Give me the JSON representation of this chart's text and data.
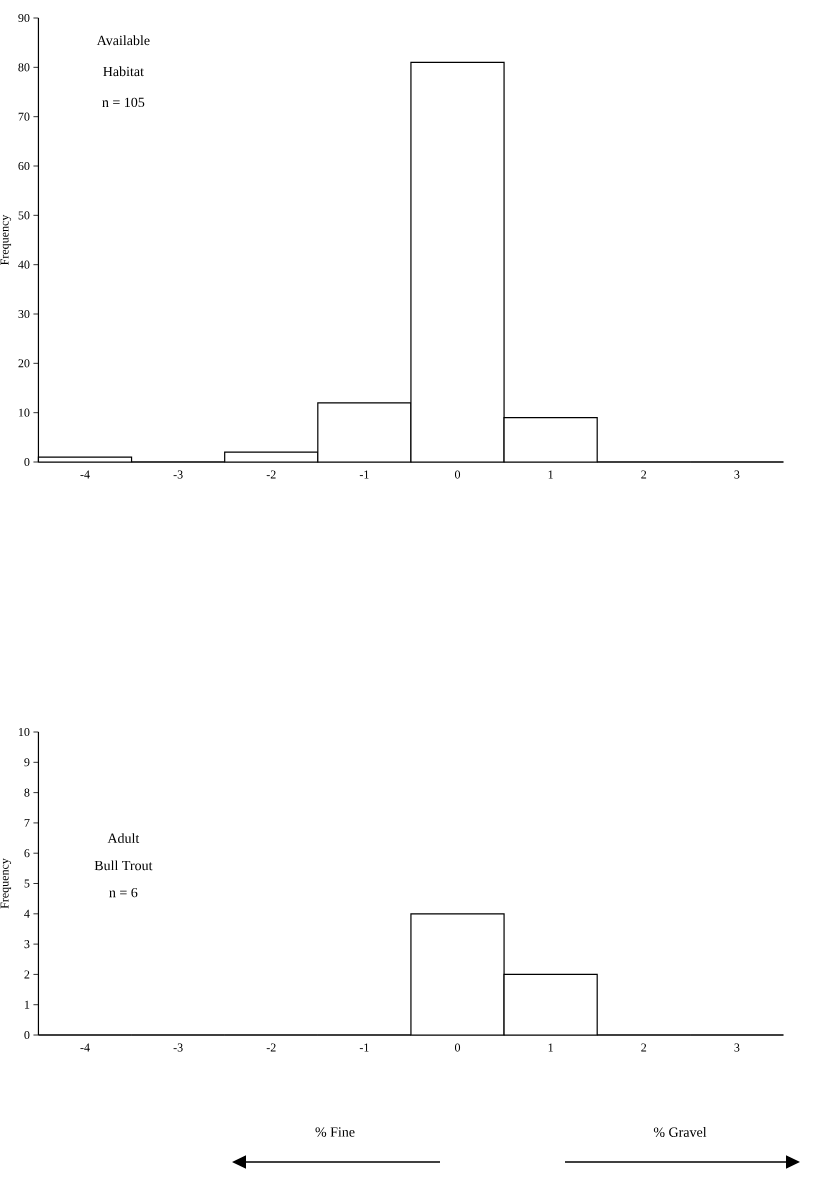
{
  "chart_data": [
    {
      "type": "bar",
      "ylabel": "Frequency",
      "categories": [
        "-4",
        "-3",
        "-2",
        "-1",
        "0",
        "1",
        "2",
        "3"
      ],
      "values": [
        1,
        0,
        2,
        12,
        81,
        9,
        0,
        0
      ],
      "color": "#ffffff",
      "ylim": [
        0,
        90
      ],
      "yticks": [
        0,
        10,
        20,
        30,
        40,
        50,
        60,
        70,
        80,
        90
      ],
      "annotations": [
        "Available",
        "Habitat",
        "n = 105"
      ]
    },
    {
      "type": "bar",
      "ylabel": "Frequency",
      "categories": [
        "-4",
        "-3",
        "-2",
        "-1",
        "0",
        "1",
        "2",
        "3"
      ],
      "values": [
        0,
        0,
        0,
        0,
        4,
        2,
        0,
        0
      ],
      "color": "#ffffff",
      "ylim": [
        0,
        10
      ],
      "yticks": [
        0,
        1,
        2,
        3,
        4,
        5,
        6,
        7,
        8,
        9,
        10
      ],
      "annotations": [
        "Adult",
        "Bull Trout",
        "n = 6",
        "% Fine",
        "% Gravel"
      ]
    }
  ]
}
